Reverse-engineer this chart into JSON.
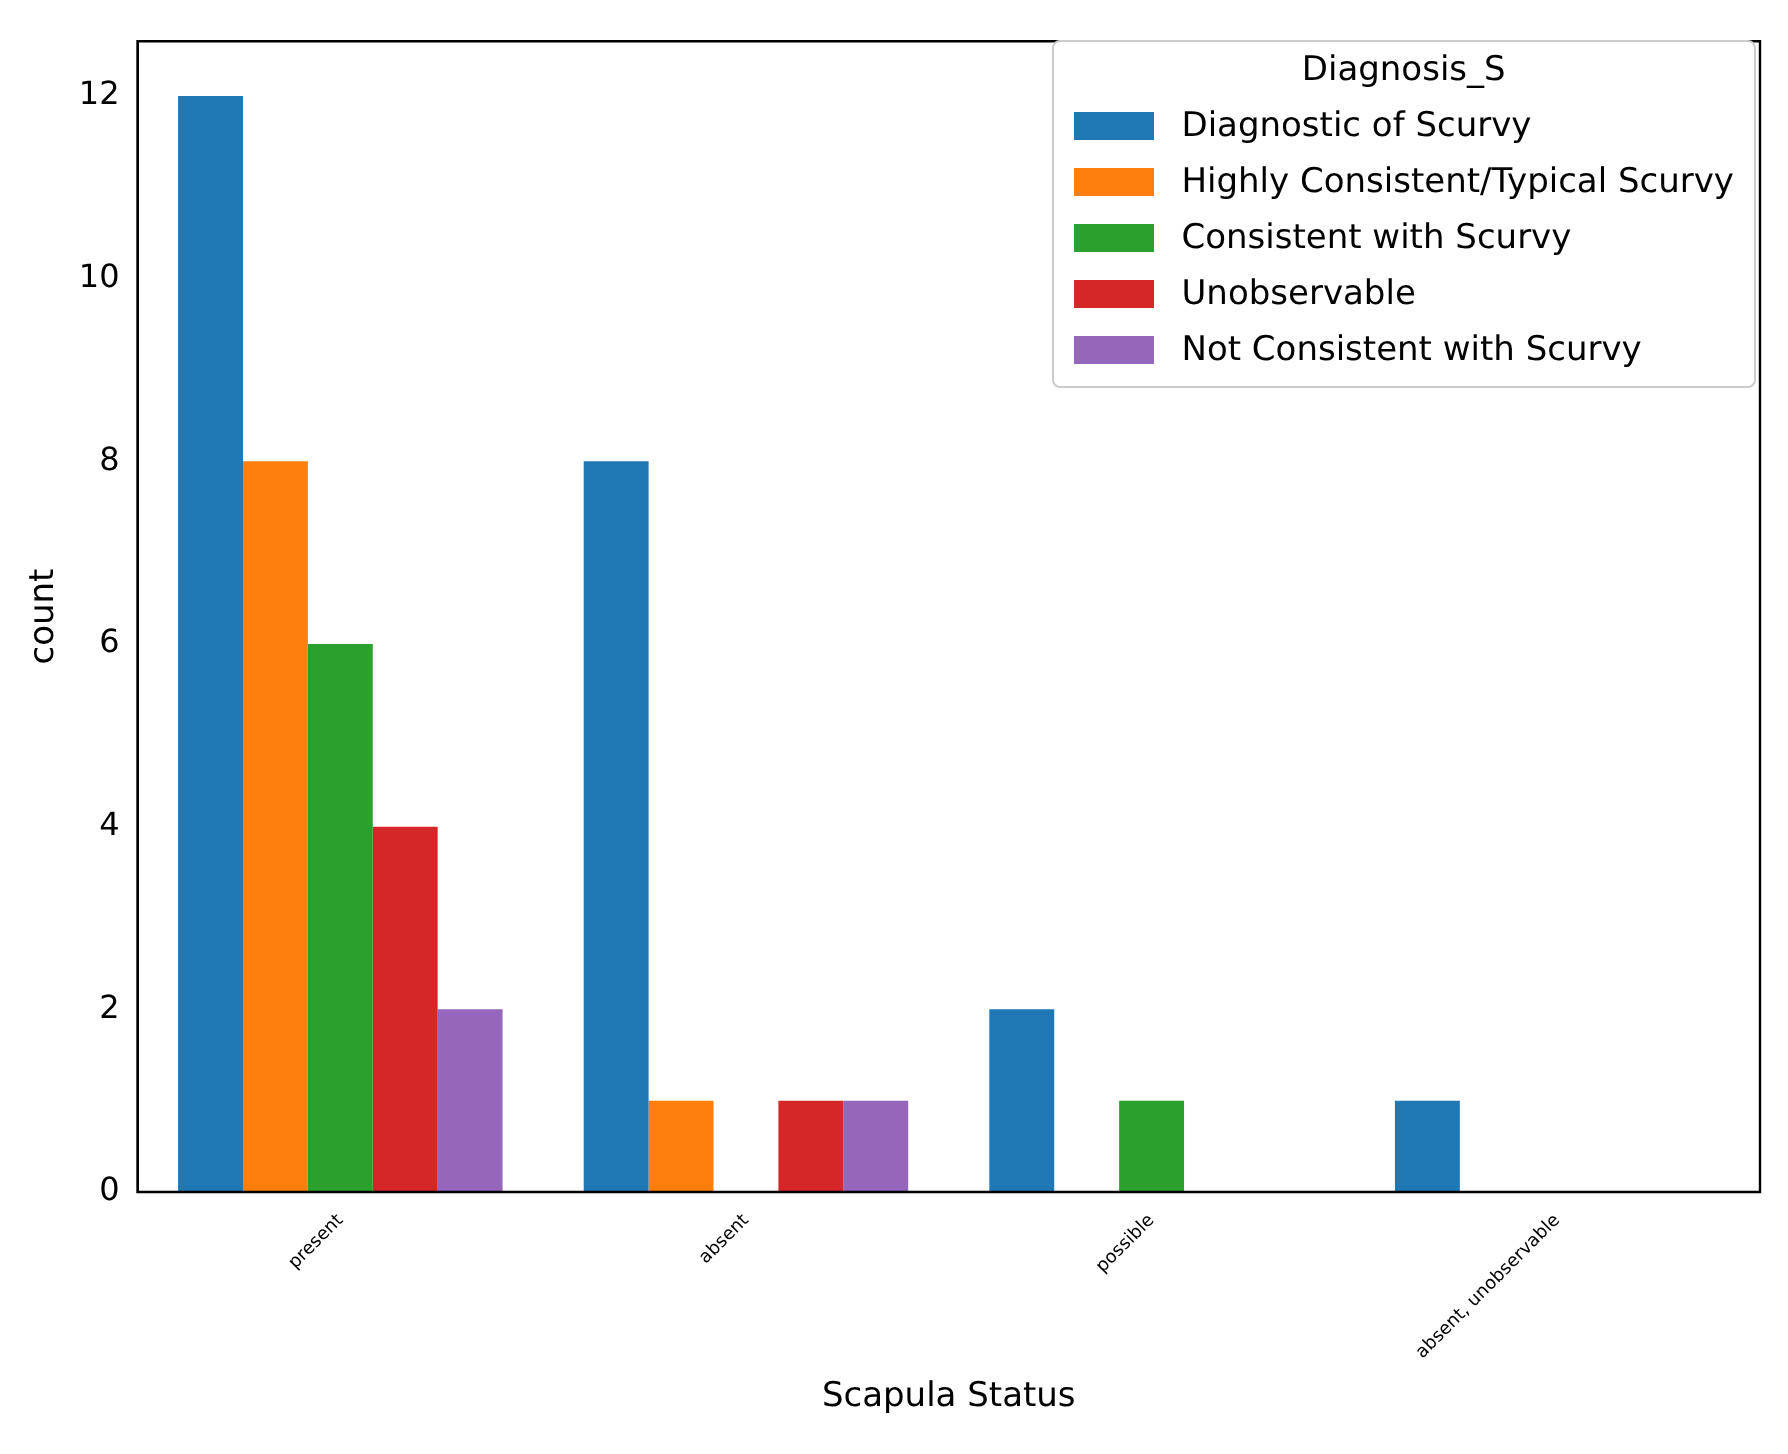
{
  "chart_data": {
    "type": "bar",
    "xlabel": "Scapula Status",
    "ylabel": "count",
    "legend_title": "Diagnosis_S",
    "legend": "top right",
    "grid": false,
    "categories": [
      "present",
      "absent",
      "possible",
      "absent, unobservable"
    ],
    "ylim": [
      0,
      12.6
    ],
    "yticks": [
      0,
      2,
      4,
      6,
      8,
      10,
      12
    ],
    "series": [
      {
        "name": "Diagnostic of Scurvy",
        "color": "#1f77b4",
        "values": [
          12,
          8,
          2,
          1
        ]
      },
      {
        "name": "Highly Consistent/Typical Scurvy",
        "color": "#ff7f0e",
        "values": [
          8,
          1,
          null,
          null
        ]
      },
      {
        "name": "Consistent with Scurvy",
        "color": "#2ca02c",
        "values": [
          6,
          null,
          1,
          null
        ]
      },
      {
        "name": "Unobservable",
        "color": "#d62728",
        "values": [
          4,
          1,
          null,
          null
        ]
      },
      {
        "name": "Not Consistent with Scurvy",
        "color": "#9467bd",
        "values": [
          2,
          1,
          null,
          null
        ]
      }
    ]
  }
}
